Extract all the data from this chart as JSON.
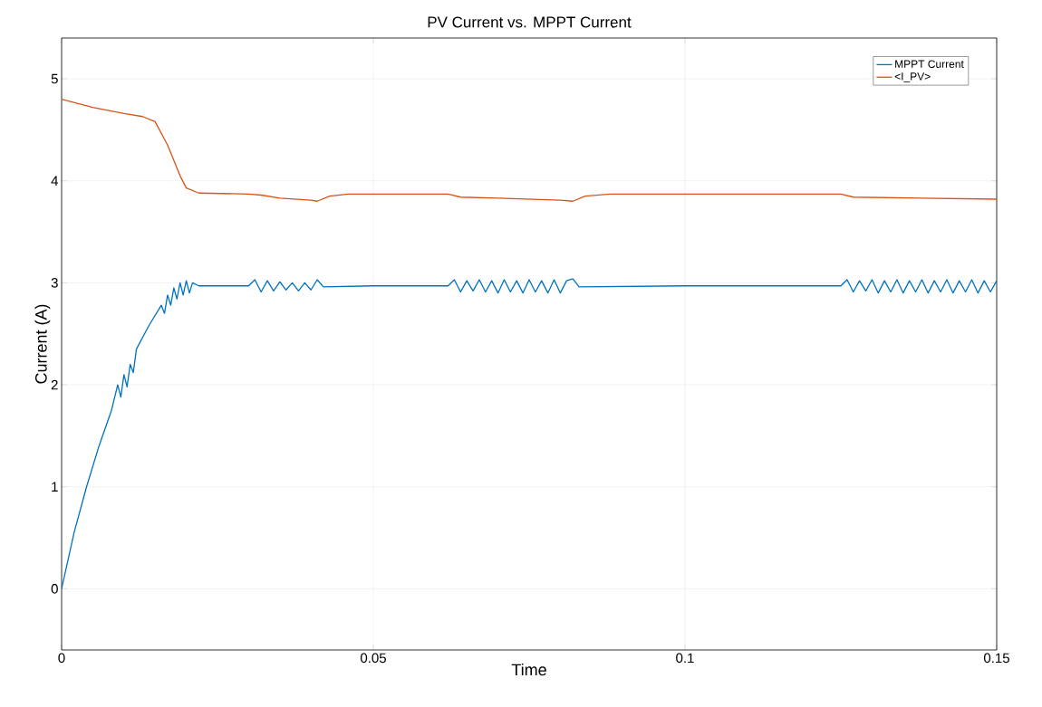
{
  "chart_data": {
    "type": "line",
    "title": "PV Current vs. MPPT Current",
    "xlabel": "Time",
    "ylabel": "Current (A)",
    "xlim": [
      0,
      0.15
    ],
    "ylim": [
      -0.6,
      5.4
    ],
    "xticks": [
      0,
      0.05,
      0.1,
      0.15
    ],
    "yticks": [
      0,
      1,
      2,
      3,
      4,
      5
    ],
    "grid": true,
    "legend": "top right",
    "line_style": "solid",
    "marker": "none",
    "series": [
      {
        "name": "MPPT Current",
        "color": "#0072bd",
        "x": [
          0,
          0.002,
          0.004,
          0.006,
          0.008,
          0.009,
          0.0095,
          0.01,
          0.0105,
          0.011,
          0.0115,
          0.012,
          0.014,
          0.016,
          0.0165,
          0.017,
          0.0175,
          0.018,
          0.0185,
          0.019,
          0.0195,
          0.02,
          0.0205,
          0.021,
          0.022,
          0.025,
          0.03,
          0.031,
          0.032,
          0.033,
          0.034,
          0.035,
          0.036,
          0.037,
          0.038,
          0.039,
          0.04,
          0.041,
          0.042,
          0.05,
          0.062,
          0.063,
          0.064,
          0.065,
          0.066,
          0.067,
          0.068,
          0.069,
          0.07,
          0.071,
          0.072,
          0.073,
          0.074,
          0.075,
          0.076,
          0.077,
          0.078,
          0.079,
          0.08,
          0.081,
          0.082,
          0.083,
          0.1,
          0.125,
          0.126,
          0.127,
          0.128,
          0.129,
          0.13,
          0.131,
          0.132,
          0.133,
          0.134,
          0.135,
          0.136,
          0.137,
          0.138,
          0.139,
          0.14,
          0.141,
          0.142,
          0.143,
          0.144,
          0.145,
          0.146,
          0.147,
          0.148,
          0.149,
          0.15
        ],
        "values": [
          0,
          0.55,
          1.0,
          1.4,
          1.75,
          2.0,
          1.88,
          2.1,
          1.98,
          2.2,
          2.12,
          2.35,
          2.58,
          2.78,
          2.7,
          2.88,
          2.78,
          2.95,
          2.84,
          3.0,
          2.88,
          3.02,
          2.9,
          3.0,
          2.97,
          2.97,
          2.97,
          3.03,
          2.91,
          3.02,
          2.92,
          3.01,
          2.93,
          3.0,
          2.92,
          3.0,
          2.93,
          3.03,
          2.96,
          2.97,
          2.97,
          3.03,
          2.91,
          3.02,
          2.92,
          3.03,
          2.91,
          3.02,
          2.9,
          3.03,
          2.91,
          3.02,
          2.9,
          3.03,
          2.91,
          3.02,
          2.9,
          3.03,
          2.9,
          3.02,
          3.04,
          2.96,
          2.97,
          2.97,
          3.03,
          2.91,
          3.02,
          2.92,
          3.03,
          2.9,
          3.02,
          2.91,
          3.03,
          2.9,
          3.02,
          2.91,
          3.03,
          2.9,
          3.02,
          2.91,
          3.03,
          2.9,
          3.02,
          2.91,
          3.03,
          2.9,
          3.02,
          2.91,
          3.02
        ]
      },
      {
        "name": "<I_PV>",
        "color": "#d95319",
        "x": [
          0,
          0.005,
          0.01,
          0.013,
          0.015,
          0.017,
          0.019,
          0.02,
          0.022,
          0.03,
          0.032,
          0.035,
          0.04,
          0.041,
          0.043,
          0.046,
          0.062,
          0.064,
          0.07,
          0.08,
          0.082,
          0.084,
          0.088,
          0.125,
          0.127,
          0.15
        ],
        "values": [
          4.8,
          4.72,
          4.66,
          4.63,
          4.58,
          4.35,
          4.05,
          3.93,
          3.88,
          3.87,
          3.86,
          3.83,
          3.81,
          3.8,
          3.85,
          3.87,
          3.87,
          3.84,
          3.83,
          3.81,
          3.8,
          3.85,
          3.87,
          3.87,
          3.84,
          3.82
        ]
      }
    ]
  }
}
